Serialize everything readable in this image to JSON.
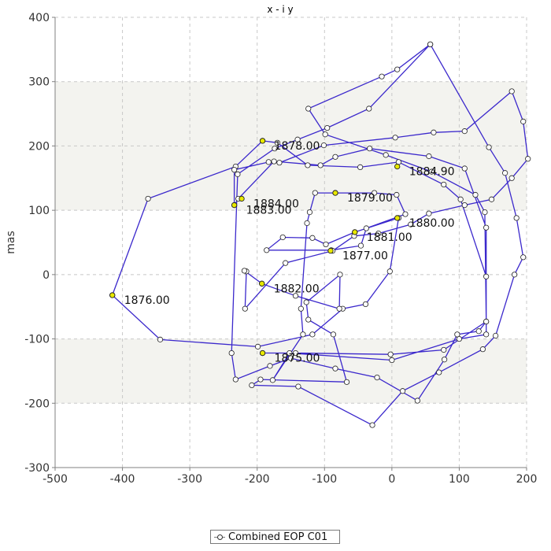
{
  "chart_data": {
    "type": "line",
    "title": "x - i y",
    "xlabel": "",
    "ylabel": "mas",
    "xlim": [
      -500,
      200
    ],
    "ylim": [
      -300,
      400
    ],
    "xticks": [
      -500,
      -400,
      -300,
      -200,
      -100,
      0,
      100,
      200
    ],
    "yticks": [
      -300,
      -200,
      -100,
      0,
      100,
      200,
      300,
      400
    ],
    "xtick_labels": [
      "-500",
      "-400",
      "-300",
      "-200",
      "-100",
      "0",
      "100",
      "200"
    ],
    "ytick_labels": [
      "-300",
      "-200",
      "-100",
      "0",
      "100",
      "200",
      "300",
      "400"
    ],
    "grid": true,
    "background_bands": [
      [
        200,
        300
      ],
      [
        100,
        200
      ],
      [
        -200,
        -100
      ]
    ],
    "legend_position": "bottom-center",
    "colors": {
      "line": "#3b28cc",
      "marker_fill": "#ffffff",
      "highlight_fill": "#e8e800",
      "marker_stroke": "#222222",
      "grid": "#c8c8c8",
      "band": "#f3f3ef"
    },
    "series": [
      {
        "name": "Combined EOP C01",
        "points": [
          {
            "x": -192,
            "y": -122
          },
          {
            "x": -143,
            "y": -122
          },
          {
            "x": -2,
            "y": -124
          },
          {
            "x": 77,
            "y": -117
          },
          {
            "x": 140,
            "y": -73
          },
          {
            "x": 140,
            "y": -3
          },
          {
            "x": 102,
            "y": 117
          },
          {
            "x": 77,
            "y": 140
          },
          {
            "x": 10,
            "y": 175
          },
          {
            "x": -47,
            "y": 167
          },
          {
            "x": -125,
            "y": 170
          },
          {
            "x": -170,
            "y": 205
          },
          {
            "x": -192,
            "y": 208
          },
          {
            "x": -232,
            "y": 168
          },
          {
            "x": -362,
            "y": 118
          },
          {
            "x": -415,
            "y": -32
          },
          {
            "x": -344,
            "y": -101
          },
          {
            "x": -199,
            "y": -112
          },
          {
            "x": -118,
            "y": -93
          },
          {
            "x": -73,
            "y": -53
          },
          {
            "x": -39,
            "y": -46
          },
          {
            "x": -3,
            "y": 5
          },
          {
            "x": 10,
            "y": 88
          },
          {
            "x": -55,
            "y": 66
          },
          {
            "x": -98,
            "y": 47
          },
          {
            "x": -118,
            "y": 57
          },
          {
            "x": -162,
            "y": 58
          },
          {
            "x": -186,
            "y": 38
          },
          {
            "x": -90,
            "y": 38
          },
          {
            "x": -46,
            "y": 45
          },
          {
            "x": -38,
            "y": 72
          },
          {
            "x": 20,
            "y": 94
          },
          {
            "x": 7,
            "y": 124
          },
          {
            "x": -26,
            "y": 127
          },
          {
            "x": -84,
            "y": 127
          },
          {
            "x": -114,
            "y": 127
          },
          {
            "x": -122,
            "y": 97
          },
          {
            "x": -126,
            "y": 80
          },
          {
            "x": -135,
            "y": -53
          },
          {
            "x": -132,
            "y": -93
          },
          {
            "x": -177,
            "y": -164
          },
          {
            "x": -152,
            "y": -122
          },
          {
            "x": 0,
            "y": -133
          },
          {
            "x": 100,
            "y": -100
          },
          {
            "x": 140,
            "y": -93
          },
          {
            "x": 140,
            "y": 73
          },
          {
            "x": 108,
            "y": 165
          },
          {
            "x": 55,
            "y": 184
          },
          {
            "x": -33,
            "y": 196
          },
          {
            "x": -84,
            "y": 183
          },
          {
            "x": -106,
            "y": 170
          },
          {
            "x": -175,
            "y": 176
          },
          {
            "x": -228,
            "y": 118
          },
          {
            "x": -234,
            "y": 108
          },
          {
            "x": -234,
            "y": 163
          },
          {
            "x": -183,
            "y": 175
          },
          {
            "x": -167,
            "y": 174
          },
          {
            "x": -101,
            "y": 201
          },
          {
            "x": 5,
            "y": 213
          },
          {
            "x": 62,
            "y": 221
          },
          {
            "x": 108,
            "y": 223
          },
          {
            "x": 178,
            "y": 285
          },
          {
            "x": 195,
            "y": 238
          },
          {
            "x": 202,
            "y": 180
          },
          {
            "x": 178,
            "y": 150
          },
          {
            "x": 148,
            "y": 117
          },
          {
            "x": 108,
            "y": 108
          },
          {
            "x": 55,
            "y": 95
          },
          {
            "x": 28,
            "y": 78
          },
          {
            "x": -20,
            "y": 64
          },
          {
            "x": -56,
            "y": 60
          },
          {
            "x": -88,
            "y": 37
          },
          {
            "x": -158,
            "y": 18
          },
          {
            "x": -218,
            "y": -53
          },
          {
            "x": -216,
            "y": 5
          },
          {
            "x": -219,
            "y": 6
          },
          {
            "x": -193,
            "y": -14
          },
          {
            "x": -143,
            "y": -33
          },
          {
            "x": -78,
            "y": -53
          },
          {
            "x": -77,
            "y": 0
          },
          {
            "x": -127,
            "y": -43
          },
          {
            "x": -124,
            "y": -70
          },
          {
            "x": -87,
            "y": -93
          },
          {
            "x": -67,
            "y": -167
          },
          {
            "x": -195,
            "y": -163
          },
          {
            "x": -208,
            "y": -172
          },
          {
            "x": -139,
            "y": -174
          },
          {
            "x": -29,
            "y": -234
          },
          {
            "x": 16,
            "y": -181
          },
          {
            "x": 70,
            "y": -152
          },
          {
            "x": 135,
            "y": -116
          },
          {
            "x": 154,
            "y": -95
          },
          {
            "x": 182,
            "y": 0
          },
          {
            "x": 195,
            "y": 27
          },
          {
            "x": 185,
            "y": 88
          },
          {
            "x": 168,
            "y": 158
          },
          {
            "x": 144,
            "y": 198
          },
          {
            "x": 57,
            "y": 358
          },
          {
            "x": -34,
            "y": 258
          },
          {
            "x": -96,
            "y": 228
          },
          {
            "x": -140,
            "y": 210
          },
          {
            "x": -174,
            "y": 196
          },
          {
            "x": -229,
            "y": 156
          },
          {
            "x": -238,
            "y": -122
          },
          {
            "x": -232,
            "y": -163
          },
          {
            "x": -181,
            "y": -142
          },
          {
            "x": -150,
            "y": -130
          },
          {
            "x": -84,
            "y": -146
          },
          {
            "x": -22,
            "y": -160
          },
          {
            "x": 38,
            "y": -196
          },
          {
            "x": 78,
            "y": -132
          },
          {
            "x": 97,
            "y": -93
          },
          {
            "x": 129,
            "y": -88
          },
          {
            "x": 140,
            "y": -73
          },
          {
            "x": 138,
            "y": 97
          },
          {
            "x": 124,
            "y": 124
          },
          {
            "x": 59,
            "y": 160
          },
          {
            "x": -9,
            "y": 186
          },
          {
            "x": -99,
            "y": 218
          },
          {
            "x": -124,
            "y": 258
          },
          {
            "x": -15,
            "y": 308
          },
          {
            "x": 8,
            "y": 319
          },
          {
            "x": 57,
            "y": 358
          }
        ],
        "labels": [
          {
            "x": -192,
            "y": -122,
            "text": "1875.00"
          },
          {
            "x": -415,
            "y": -32,
            "text": "1876.00"
          },
          {
            "x": -91,
            "y": 37,
            "text": "1877.00"
          },
          {
            "x": -192,
            "y": 208,
            "text": "1878.00"
          },
          {
            "x": -84,
            "y": 127,
            "text": "1879.00"
          },
          {
            "x": 8,
            "y": 88,
            "text": "1880.00"
          },
          {
            "x": -55,
            "y": 66,
            "text": "1881.00"
          },
          {
            "x": -193,
            "y": -14,
            "text": "1882.00"
          },
          {
            "x": -234,
            "y": 108,
            "text": "1883.00"
          },
          {
            "x": -223,
            "y": 118,
            "text": "1884.00"
          },
          {
            "x": 8,
            "y": 168,
            "text": "1884.90"
          }
        ]
      }
    ]
  }
}
